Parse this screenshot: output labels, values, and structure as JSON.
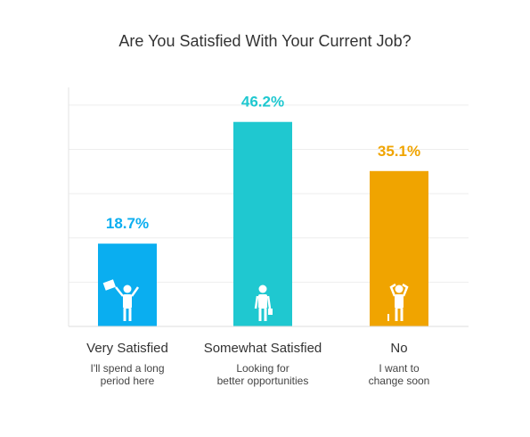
{
  "chart_data": {
    "type": "bar",
    "title": "Are You Satisfied With Your Current Job?",
    "categories": [
      "Very Satisfied",
      "Somewhat Satisfied",
      "No"
    ],
    "subtitles": [
      "I'll spend a long\nperiod here",
      "Looking for\nbetter opportunities",
      "I want to\nchange soon"
    ],
    "values": [
      18.7,
      46.2,
      35.1
    ],
    "value_labels": [
      "18.7%",
      "46.2%",
      "35.1%"
    ],
    "colors": [
      "#0aaef0",
      "#1fc8d0",
      "#f0a400"
    ],
    "icons": [
      "celebrating-worker-icon",
      "standing-worker-icon",
      "frustrated-worker-icon"
    ],
    "ylim": [
      0,
      54
    ],
    "grid": true,
    "xlabel": "",
    "ylabel": ""
  }
}
